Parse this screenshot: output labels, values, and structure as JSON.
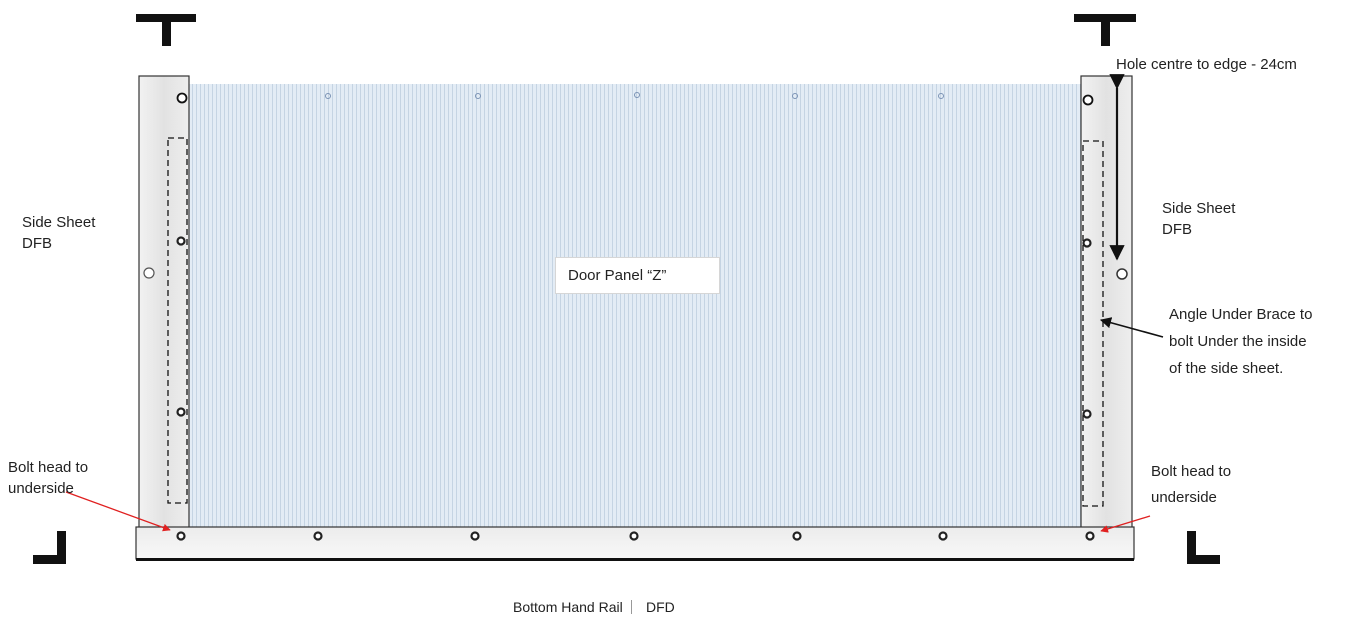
{
  "panel": {
    "label": "Door Panel “Z”"
  },
  "labels": {
    "left_side_sheet_line1": "Side Sheet",
    "left_side_sheet_line2": "DFB",
    "right_side_sheet_line1": "Side Sheet",
    "right_side_sheet_line2": "DFB",
    "hole_centre": "Hole centre to edge - 24cm",
    "angle_brace_line1": "Angle Under Brace to",
    "angle_brace_line2": "bolt Under the inside",
    "angle_brace_line3": "of the side sheet.",
    "bolt_head_left_line1": "Bolt head to",
    "bolt_head_left_line2": "underside",
    "bolt_head_right_line1": "Bolt head to",
    "bolt_head_right_line2": "underside",
    "bottom_rail": "Bottom Hand Rail",
    "bottom_rail_code": "DFD"
  },
  "colors": {
    "panel_fill": "#dfe9f2",
    "panel_stripe": "#c7d6e4",
    "side_sheet_fill": "#e8e8e8",
    "arrow_red": "#e02020",
    "outline": "#111111"
  }
}
